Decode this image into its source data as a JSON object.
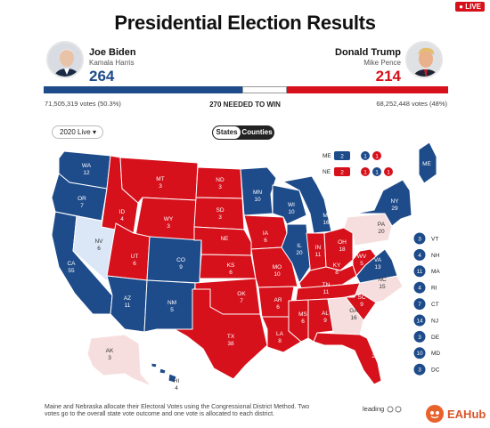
{
  "header": {
    "live_label": "LIVE",
    "title": "Presidential Election Results"
  },
  "biden": {
    "name": "Joe Biden",
    "vp": "Kamala Harris",
    "votes": "264",
    "popular": "71,505,319 votes (50.3%)",
    "color": "#1e4b8a"
  },
  "trump": {
    "name": "Donald Trump",
    "vp": "Mike Pence",
    "votes": "214",
    "popular": "68,252,448 votes (48%)",
    "color": "#d6111b"
  },
  "progress": {
    "dem_ev": 264,
    "rep_ev": 214,
    "total_ev": 538,
    "needed_label": "270 NEEDED TO WIN"
  },
  "controls": {
    "year_select": "2020 Live",
    "view_toggle": [
      "States",
      "Counties"
    ],
    "active_view": "States"
  },
  "colors": {
    "dem": "#1e4b8a",
    "rep": "#d6111b",
    "lean_dem": "#dbe7f7",
    "lean_rep": "#f6dede",
    "undecided": "#ffffff"
  },
  "states": [
    {
      "abbr": "WA",
      "ev": "12",
      "winner": "dem"
    },
    {
      "abbr": "OR",
      "ev": "7",
      "winner": "dem"
    },
    {
      "abbr": "CA",
      "ev": "55",
      "winner": "dem"
    },
    {
      "abbr": "NV",
      "ev": "6",
      "winner": "lean_dem"
    },
    {
      "abbr": "ID",
      "ev": "4",
      "winner": "rep"
    },
    {
      "abbr": "MT",
      "ev": "3",
      "winner": "rep"
    },
    {
      "abbr": "WY",
      "ev": "3",
      "winner": "rep"
    },
    {
      "abbr": "UT",
      "ev": "6",
      "winner": "rep"
    },
    {
      "abbr": "AZ",
      "ev": "11",
      "winner": "dem"
    },
    {
      "abbr": "CO",
      "ev": "9",
      "winner": "dem"
    },
    {
      "abbr": "NM",
      "ev": "5",
      "winner": "dem"
    },
    {
      "abbr": "ND",
      "ev": "3",
      "winner": "rep"
    },
    {
      "abbr": "SD",
      "ev": "3",
      "winner": "rep"
    },
    {
      "abbr": "NE",
      "ev": "",
      "winner": "rep"
    },
    {
      "abbr": "KS",
      "ev": "6",
      "winner": "rep"
    },
    {
      "abbr": "OK",
      "ev": "7",
      "winner": "rep"
    },
    {
      "abbr": "TX",
      "ev": "38",
      "winner": "rep"
    },
    {
      "abbr": "MN",
      "ev": "10",
      "winner": "dem"
    },
    {
      "abbr": "IA",
      "ev": "6",
      "winner": "rep"
    },
    {
      "abbr": "MO",
      "ev": "10",
      "winner": "rep"
    },
    {
      "abbr": "AR",
      "ev": "6",
      "winner": "rep"
    },
    {
      "abbr": "LA",
      "ev": "8",
      "winner": "rep"
    },
    {
      "abbr": "WI",
      "ev": "10",
      "winner": "dem"
    },
    {
      "abbr": "IL",
      "ev": "20",
      "winner": "dem"
    },
    {
      "abbr": "MI",
      "ev": "16",
      "winner": "dem"
    },
    {
      "abbr": "IN",
      "ev": "11",
      "winner": "rep"
    },
    {
      "abbr": "OH",
      "ev": "18",
      "winner": "rep"
    },
    {
      "abbr": "KY",
      "ev": "8",
      "winner": "rep"
    },
    {
      "abbr": "TN",
      "ev": "11",
      "winner": "rep"
    },
    {
      "abbr": "MS",
      "ev": "6",
      "winner": "rep"
    },
    {
      "abbr": "AL",
      "ev": "9",
      "winner": "rep"
    },
    {
      "abbr": "GA",
      "ev": "16",
      "winner": "lean_rep"
    },
    {
      "abbr": "FL",
      "ev": "29",
      "winner": "rep"
    },
    {
      "abbr": "SC",
      "ev": "9",
      "winner": "rep"
    },
    {
      "abbr": "NC",
      "ev": "15",
      "winner": "lean_rep"
    },
    {
      "abbr": "VA",
      "ev": "13",
      "winner": "dem"
    },
    {
      "abbr": "WV",
      "ev": "5",
      "winner": "rep"
    },
    {
      "abbr": "PA",
      "ev": "20",
      "winner": "lean_rep"
    },
    {
      "abbr": "NY",
      "ev": "29",
      "winner": "dem"
    },
    {
      "abbr": "ME",
      "ev": "",
      "winner": "dem"
    },
    {
      "abbr": "AK",
      "ev": "3",
      "winner": "lean_rep"
    },
    {
      "abbr": "HI",
      "ev": "4",
      "winner": "dem"
    }
  ],
  "split_states": [
    {
      "abbr": "ME",
      "boxes": [
        {
          "ev": "2",
          "winner": "dem"
        },
        {
          "ev": "1",
          "winner": "dem"
        },
        {
          "ev": "1",
          "winner": "rep"
        }
      ]
    },
    {
      "abbr": "NE",
      "boxes": [
        {
          "ev": "2",
          "winner": "rep"
        },
        {
          "ev": "1",
          "winner": "rep"
        },
        {
          "ev": "1",
          "winner": "dem"
        },
        {
          "ev": "1",
          "winner": "rep"
        }
      ]
    }
  ],
  "small_states": [
    {
      "abbr": "VT",
      "ev": "3",
      "winner": "dem"
    },
    {
      "abbr": "NH",
      "ev": "4",
      "winner": "dem"
    },
    {
      "abbr": "MA",
      "ev": "11",
      "winner": "dem"
    },
    {
      "abbr": "RI",
      "ev": "4",
      "winner": "dem"
    },
    {
      "abbr": "CT",
      "ev": "7",
      "winner": "dem"
    },
    {
      "abbr": "NJ",
      "ev": "14",
      "winner": "dem"
    },
    {
      "abbr": "DE",
      "ev": "3",
      "winner": "dem"
    },
    {
      "abbr": "MD",
      "ev": "10",
      "winner": "dem"
    },
    {
      "abbr": "DC",
      "ev": "3",
      "winner": "dem"
    }
  ],
  "footer": {
    "footnote": "Maine and Nebraska allocate their Electoral Votes using the Congressional District Method. Two votes go to the overall state vote outcome and one vote is allocated to each district.",
    "leading": "leading",
    "brand": "EAHub"
  }
}
